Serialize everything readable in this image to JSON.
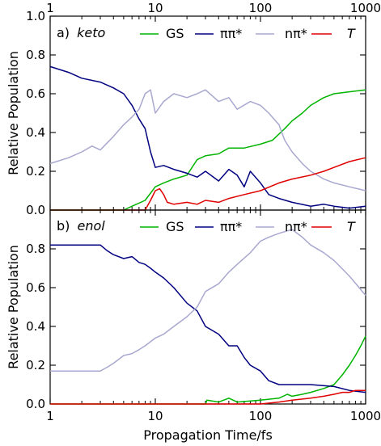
{
  "colors": {
    "GS": "#00b400",
    "pp": "#000080",
    "np": "#a8a8d0",
    "T": "#e00000",
    "axis": "#000000"
  },
  "chart_data": [
    {
      "type": "line",
      "title_prefix": "a)",
      "title": "keto",
      "xlabel": "Propagation Time/fs",
      "ylabel": "Relative Population",
      "x_scale": "log",
      "xlim": [
        1,
        1000
      ],
      "ylim": [
        0.0,
        1.0
      ],
      "x_ticks": [
        "1",
        "10",
        "100",
        "1000"
      ],
      "x_tick_position": "top",
      "y_ticks": [
        "0.0",
        "0.2",
        "0.4",
        "0.6",
        "0.8",
        "1.0"
      ],
      "legend_position": "top-right",
      "series": [
        {
          "name": "GS",
          "color_key": "GS",
          "x": [
            1,
            5,
            6,
            8,
            10,
            12,
            15,
            20,
            25,
            30,
            40,
            50,
            70,
            100,
            130,
            170,
            200,
            250,
            300,
            400,
            500,
            700,
            1000
          ],
          "y": [
            0.0,
            0.0,
            0.02,
            0.05,
            0.12,
            0.14,
            0.16,
            0.18,
            0.26,
            0.28,
            0.29,
            0.32,
            0.32,
            0.34,
            0.36,
            0.42,
            0.46,
            0.5,
            0.54,
            0.58,
            0.6,
            0.61,
            0.62
          ]
        },
        {
          "name": "ππ*",
          "color_key": "pp",
          "x": [
            1,
            1.5,
            2,
            3,
            4,
            5,
            6,
            7,
            8,
            9,
            10,
            12,
            15,
            20,
            25,
            30,
            40,
            50,
            60,
            70,
            80,
            100,
            120,
            150,
            200,
            300,
            400,
            500,
            700,
            1000
          ],
          "y": [
            0.74,
            0.71,
            0.68,
            0.66,
            0.63,
            0.6,
            0.54,
            0.47,
            0.42,
            0.3,
            0.22,
            0.23,
            0.21,
            0.19,
            0.17,
            0.2,
            0.15,
            0.21,
            0.18,
            0.12,
            0.2,
            0.14,
            0.08,
            0.06,
            0.04,
            0.02,
            0.03,
            0.02,
            0.01,
            0.02
          ]
        },
        {
          "name": "nπ*",
          "color_key": "np",
          "x": [
            1,
            1.5,
            2,
            2.5,
            3,
            4,
            5,
            6,
            7,
            8,
            9,
            10,
            12,
            15,
            20,
            25,
            30,
            40,
            50,
            60,
            80,
            100,
            120,
            150,
            170,
            200,
            250,
            300,
            400,
            500,
            700,
            1000
          ],
          "y": [
            0.24,
            0.27,
            0.3,
            0.33,
            0.31,
            0.38,
            0.44,
            0.48,
            0.52,
            0.6,
            0.62,
            0.5,
            0.56,
            0.6,
            0.58,
            0.6,
            0.62,
            0.56,
            0.58,
            0.52,
            0.56,
            0.54,
            0.5,
            0.44,
            0.36,
            0.3,
            0.24,
            0.2,
            0.16,
            0.14,
            0.12,
            0.1
          ]
        },
        {
          "name": "T",
          "color_key": "T",
          "x": [
            1,
            8,
            9,
            10,
            11,
            12,
            13,
            15,
            20,
            25,
            30,
            40,
            50,
            70,
            100,
            150,
            200,
            300,
            400,
            500,
            700,
            1000
          ],
          "y": [
            0.0,
            0.0,
            0.05,
            0.1,
            0.11,
            0.08,
            0.04,
            0.03,
            0.04,
            0.03,
            0.05,
            0.04,
            0.06,
            0.08,
            0.1,
            0.14,
            0.16,
            0.18,
            0.2,
            0.22,
            0.25,
            0.27
          ]
        }
      ]
    },
    {
      "type": "line",
      "title_prefix": "b)",
      "title": "enol",
      "xlabel": "Propagation Time/fs",
      "ylabel": "Relative Population",
      "x_scale": "log",
      "xlim": [
        1,
        1000
      ],
      "ylim": [
        0.0,
        1.0
      ],
      "x_ticks": [
        "1",
        "10",
        "100",
        "1000"
      ],
      "x_tick_position": "bottom",
      "y_ticks": [
        "0.0",
        "0.2",
        "0.4",
        "0.6",
        "0.8"
      ],
      "legend_position": "top-right",
      "series": [
        {
          "name": "GS",
          "color_key": "GS",
          "x": [
            1,
            30,
            31,
            40,
            50,
            60,
            100,
            150,
            180,
            200,
            250,
            300,
            400,
            500,
            600,
            700,
            800,
            900,
            1000
          ],
          "y": [
            0.0,
            0.0,
            0.02,
            0.01,
            0.03,
            0.01,
            0.02,
            0.03,
            0.05,
            0.04,
            0.05,
            0.06,
            0.08,
            0.1,
            0.15,
            0.2,
            0.25,
            0.3,
            0.35
          ]
        },
        {
          "name": "ππ*",
          "color_key": "pp",
          "x": [
            1,
            3,
            3.5,
            4,
            5,
            6,
            7,
            8,
            9,
            10,
            12,
            15,
            20,
            25,
            30,
            40,
            50,
            60,
            70,
            80,
            100,
            120,
            150,
            200,
            300,
            500,
            700,
            1000
          ],
          "y": [
            0.82,
            0.82,
            0.79,
            0.77,
            0.75,
            0.76,
            0.73,
            0.72,
            0.7,
            0.68,
            0.65,
            0.6,
            0.52,
            0.48,
            0.4,
            0.36,
            0.3,
            0.3,
            0.24,
            0.2,
            0.17,
            0.12,
            0.1,
            0.1,
            0.1,
            0.09,
            0.07,
            0.06
          ]
        },
        {
          "name": "nπ*",
          "color_key": "np",
          "x": [
            1,
            2,
            3,
            3.5,
            4,
            5,
            6,
            7,
            8,
            10,
            12,
            15,
            20,
            25,
            30,
            40,
            50,
            60,
            80,
            100,
            120,
            150,
            200,
            250,
            300,
            400,
            500,
            700,
            1000
          ],
          "y": [
            0.17,
            0.17,
            0.17,
            0.19,
            0.21,
            0.25,
            0.26,
            0.28,
            0.3,
            0.34,
            0.36,
            0.4,
            0.45,
            0.5,
            0.58,
            0.62,
            0.68,
            0.72,
            0.78,
            0.84,
            0.86,
            0.88,
            0.9,
            0.86,
            0.82,
            0.78,
            0.74,
            0.66,
            0.56
          ]
        },
        {
          "name": "T",
          "color_key": "T",
          "x": [
            1,
            50,
            100,
            150,
            200,
            300,
            400,
            500,
            600,
            700,
            800,
            900,
            1000
          ],
          "y": [
            0.0,
            0.0,
            0.0,
            0.01,
            0.02,
            0.03,
            0.04,
            0.05,
            0.06,
            0.06,
            0.07,
            0.07,
            0.07
          ]
        }
      ]
    }
  ]
}
